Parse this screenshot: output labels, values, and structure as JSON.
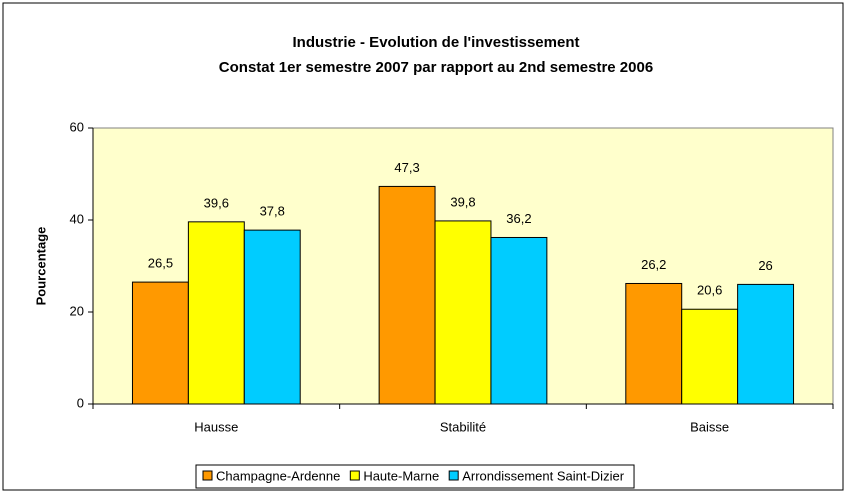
{
  "chart_data": {
    "type": "bar",
    "title": "Industrie - Evolution de l'investissement",
    "subtitle": "Constat 1er semestre 2007 par rapport au 2nd semestre 2006",
    "y_label": "Pourcentage",
    "categories": [
      "Hausse",
      "Stabilité",
      "Baisse"
    ],
    "series": [
      {
        "name": "Champagne-Ardenne",
        "color": "#FF9900",
        "values": [
          26.5,
          47.3,
          26.2
        ],
        "value_labels": [
          "26,5",
          "47,3",
          "26,2"
        ]
      },
      {
        "name": "Haute-Marne",
        "color": "#FFFF00",
        "values": [
          39.6,
          39.8,
          20.6
        ],
        "value_labels": [
          "39,6",
          "39,8",
          "20,6"
        ]
      },
      {
        "name": "Arrondissement Saint-Dizier",
        "color": "#00CCFF",
        "values": [
          37.8,
          36.2,
          26
        ],
        "value_labels": [
          "37,8",
          "36,2",
          "26"
        ]
      }
    ],
    "ylim": [
      0,
      60
    ],
    "yticks": [
      0,
      20,
      40,
      60
    ],
    "plot_background": "#FFFFCC",
    "legend": "bottom"
  }
}
